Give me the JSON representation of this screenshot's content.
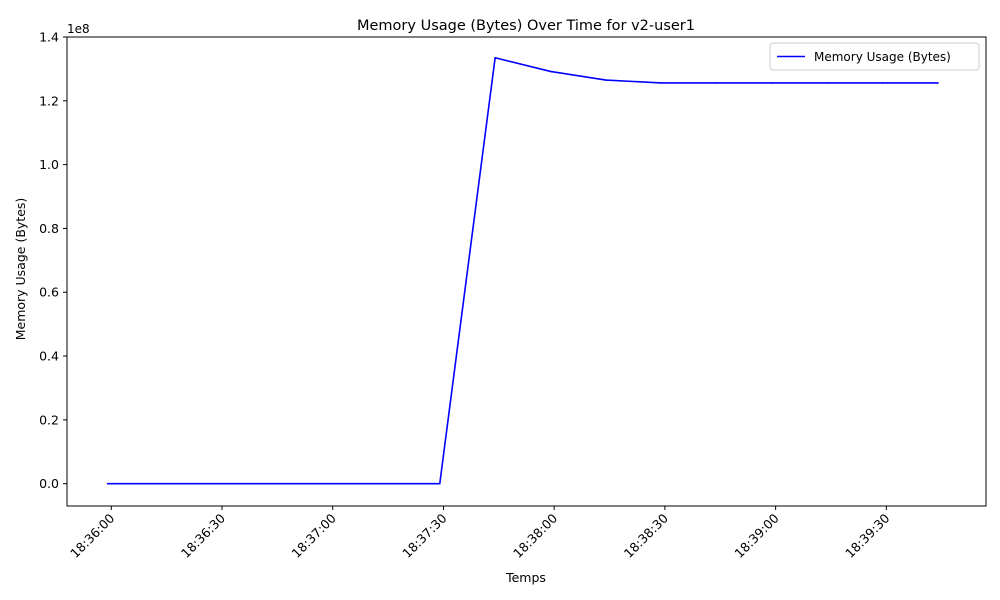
{
  "chart_data": {
    "type": "line",
    "title": "Memory Usage (Bytes) Over Time for v2-user1",
    "xlabel": "Temps",
    "ylabel": "Memory Usage (Bytes)",
    "y_offset_label": "1e8",
    "x_range": [
      "18:35:48",
      "18:39:57"
    ],
    "ylim": [
      -7000000,
      140000000
    ],
    "x_ticks": [
      "18:36:00",
      "18:36:30",
      "18:37:00",
      "18:37:30",
      "18:38:00",
      "18:38:30",
      "18:39:00",
      "18:39:30"
    ],
    "y_ticks": [
      {
        "value": 0,
        "label": "0.0"
      },
      {
        "value": 20000000,
        "label": "0.2"
      },
      {
        "value": 40000000,
        "label": "0.4"
      },
      {
        "value": 60000000,
        "label": "0.6"
      },
      {
        "value": 80000000,
        "label": "0.8"
      },
      {
        "value": 100000000,
        "label": "1.0"
      },
      {
        "value": 120000000,
        "label": "1.2"
      },
      {
        "value": 140000000,
        "label": "1.4"
      }
    ],
    "grid": false,
    "legend_position": "upper right",
    "series": [
      {
        "name": "Memory Usage (Bytes)",
        "color": "#0000ff",
        "points": [
          {
            "x": "18:35:59",
            "y": 0
          },
          {
            "x": "18:37:29",
            "y": 0
          },
          {
            "x": "18:37:44",
            "y": 133500000
          },
          {
            "x": "18:37:59",
            "y": 129200000
          },
          {
            "x": "18:38:14",
            "y": 126500000
          },
          {
            "x": "18:38:29",
            "y": 125600000
          },
          {
            "x": "18:38:44",
            "y": 125600000
          },
          {
            "x": "18:38:59",
            "y": 125600000
          },
          {
            "x": "18:39:14",
            "y": 125600000
          },
          {
            "x": "18:39:29",
            "y": 125600000
          },
          {
            "x": "18:39:44",
            "y": 125600000
          }
        ]
      }
    ]
  }
}
